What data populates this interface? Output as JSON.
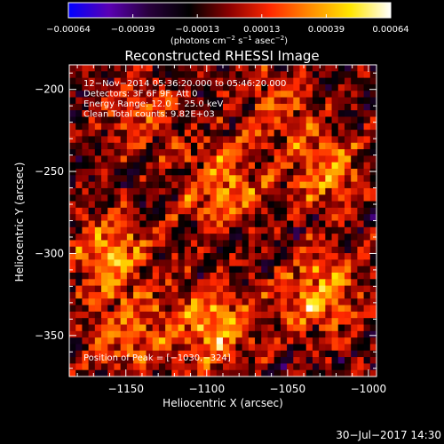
{
  "colorbar": {
    "ticks": [
      "−0.00064",
      "−0.00039",
      "−0.00013",
      "0.00013",
      "0.00039",
      "0.00064"
    ],
    "units_text": "(photons cm",
    "units_sup1": "−2",
    "units_mid": " s",
    "units_sup2": "−1",
    "units_end": " asec",
    "units_sup3": "−2",
    "units_close": ")",
    "colors": [
      "#0000ff",
      "#5a00b4",
      "#28003c",
      "#000000",
      "#8c0000",
      "#ff2800",
      "#ff8c00",
      "#ffe600",
      "#ffffff"
    ]
  },
  "plot": {
    "title": "Reconstructed RHESSI Image",
    "info_lines": [
      "12−Nov−2014 05:36:20.000 to 05:46:20.000",
      "Detectors: 3F 6F 9F, Att 0",
      "Energy Range: 12.0 − 25.0 keV",
      "Clean     Total counts: 9.82E+03"
    ],
    "peak_text": "Position of Peak = [−1030,−324]",
    "footer_date": "30−Jul−2017 14:30"
  },
  "chart_data": {
    "type": "heatmap",
    "title": "Reconstructed RHESSI Image",
    "xlabel": "Heliocentric X (arcsec)",
    "ylabel": "Heliocentric Y (arcsec)",
    "xlim": [
      -1185,
      -995
    ],
    "ylim": [
      -375,
      -185
    ],
    "x_ticks": [
      -1150,
      -1100,
      -1050,
      -1000
    ],
    "x_tick_labels": [
      "−1150",
      "−1100",
      "−1050",
      "−1000"
    ],
    "y_ticks": [
      -200,
      -250,
      -300,
      -350
    ],
    "y_tick_labels": [
      "−200",
      "−250",
      "−300",
      "−350"
    ],
    "colorbar_range": [
      -0.00064,
      0.00064
    ],
    "peak_position": [
      -1030,
      -324
    ],
    "bright_regions": [
      {
        "x": -1160,
        "y": -300,
        "level": 0.9
      },
      {
        "x": -1150,
        "y": -350,
        "level": 0.75
      },
      {
        "x": -1095,
        "y": -345,
        "level": 1.0
      },
      {
        "x": -1090,
        "y": -260,
        "level": 0.85
      },
      {
        "x": -1030,
        "y": -324,
        "level": 1.0
      },
      {
        "x": -1025,
        "y": -250,
        "level": 0.8
      },
      {
        "x": -1060,
        "y": -210,
        "level": 0.55
      },
      {
        "x": -1140,
        "y": -215,
        "level": 0.6
      }
    ]
  }
}
